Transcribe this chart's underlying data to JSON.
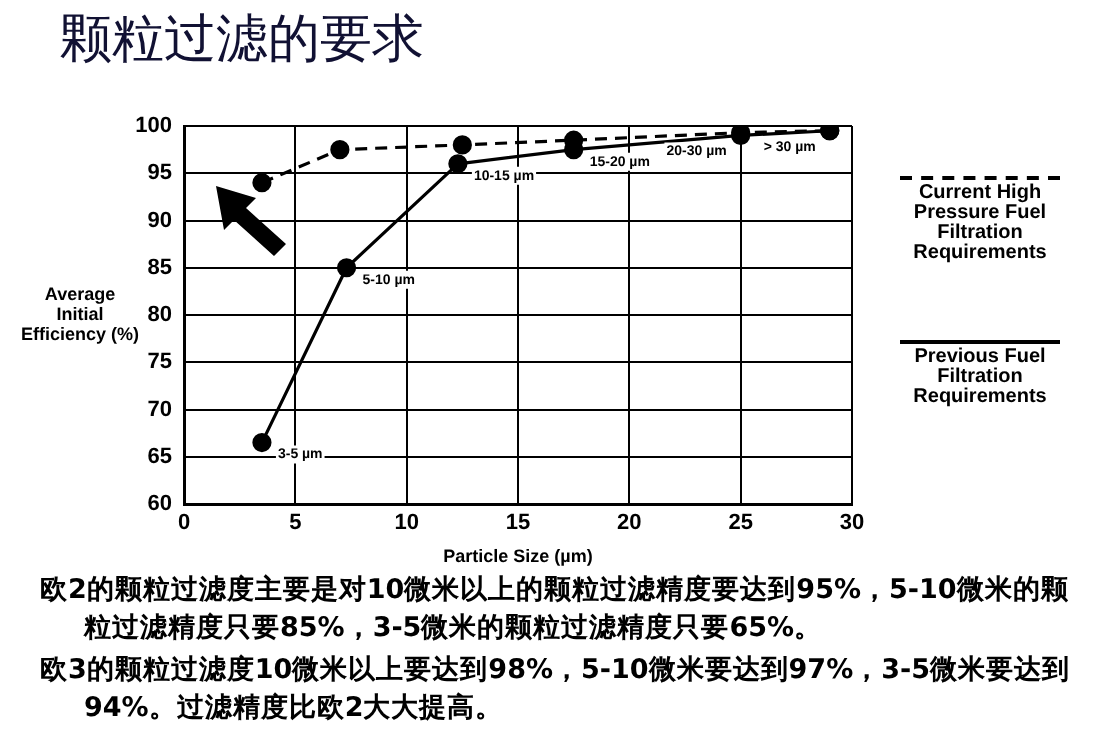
{
  "chart_data": {
    "type": "line",
    "title": "颗粒过滤的要求",
    "xlabel": "Particle Size (µm)",
    "ylabel": "Average Initial Efficiency (%)",
    "xlim": [
      0,
      30
    ],
    "xticks": [
      0,
      5,
      10,
      15,
      20,
      25,
      30
    ],
    "ylim": [
      60,
      100
    ],
    "yticks": [
      60,
      65,
      70,
      75,
      80,
      85,
      90,
      95,
      100
    ],
    "grid": true,
    "legend": "right",
    "marker": "circle",
    "series": [
      {
        "name": "Current High Pressure Fuel Filtration Requirements",
        "color": "#000000",
        "line_style": "dashed",
        "x": [
          3.5,
          7,
          12.5,
          17.5,
          25,
          29
        ],
        "values": [
          94,
          97.5,
          98,
          98.5,
          99.3,
          99.5
        ]
      },
      {
        "name": "Previous Fuel Filtration Requirements",
        "color": "#000000",
        "line_style": "solid",
        "x": [
          3.5,
          7.3,
          12.3,
          17.5,
          25,
          29
        ],
        "values": [
          66.5,
          85,
          96,
          97.5,
          99,
          99.5
        ]
      }
    ],
    "annotations": [
      {
        "text": "3-5 µm",
        "x": 3.5,
        "y": 66.5
      },
      {
        "text": "5-10 µm",
        "x": 7.3,
        "y": 85
      },
      {
        "text": "10-15 µm",
        "x": 12.3,
        "y": 96
      },
      {
        "text": "15-20 µm",
        "x": 17.5,
        "y": 97.5
      },
      {
        "text": "20-30 µm",
        "x": 25,
        "y": 99
      },
      {
        "text": "> 30 µm",
        "x": 29,
        "y": 99.5
      },
      "欧2的颗粒过滤度主要是对10微米以上的颗粒过滤精度要达到95%，5-10微米的颗粒过滤精度只要85%，3-5微米的颗粒过滤精度只要65%。",
      "欧3的颗粒过滤度10微米以上要达到98%，5-10微米要达到97%，3-5微米要达到94%。过滤精度比欧2大大提高。"
    ]
  }
}
